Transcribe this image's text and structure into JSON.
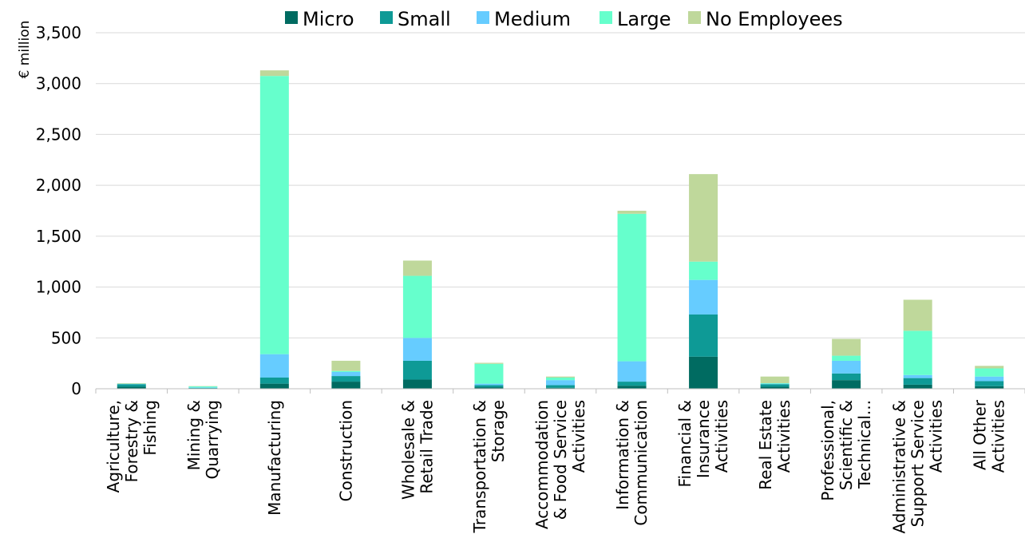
{
  "chart_data": {
    "type": "bar",
    "stacked": true,
    "ylabel": "€ million",
    "xlabel": "",
    "ylim": [
      0,
      3500
    ],
    "yticks": [
      "0",
      "500",
      "1,000",
      "1,500",
      "2,000",
      "2,500",
      "3,000",
      "3,500"
    ],
    "grid": true,
    "legend_position": "top",
    "categories": [
      [
        "Agriculture,",
        "Forestry &",
        "Fishing"
      ],
      [
        "Mining &",
        "Quarrying"
      ],
      [
        "Manufacturing"
      ],
      [
        "Construction"
      ],
      [
        "Wholesale &",
        "Retail Trade"
      ],
      [
        "Transportation &",
        "Storage"
      ],
      [
        "Accommodation",
        "& Food Service",
        "Activities"
      ],
      [
        "Information &",
        "Communication"
      ],
      [
        "Financial &",
        "Insurance",
        "Activities"
      ],
      [
        "Real Estate",
        "Activities"
      ],
      [
        "Professional,",
        "Scientific &",
        "Technical..."
      ],
      [
        "Administrative &",
        "Support Service",
        "Activities"
      ],
      [
        "All Other",
        "Activities"
      ]
    ],
    "series": [
      {
        "name": "Micro",
        "color": "#006b61",
        "values": [
          20,
          3,
          50,
          70,
          90,
          15,
          10,
          30,
          315,
          20,
          85,
          40,
          25
        ]
      },
      {
        "name": "Small",
        "color": "#0e9a96",
        "values": [
          25,
          5,
          60,
          55,
          185,
          20,
          25,
          40,
          415,
          25,
          65,
          65,
          50
        ]
      },
      {
        "name": "Medium",
        "color": "#66ccff",
        "values": [
          3,
          5,
          230,
          40,
          225,
          15,
          50,
          200,
          340,
          5,
          125,
          30,
          45
        ]
      },
      {
        "name": "Large",
        "color": "#66ffcc",
        "values": [
          2,
          10,
          2735,
          10,
          610,
          195,
          25,
          1450,
          180,
          5,
          50,
          435,
          80
        ]
      },
      {
        "name": "No Employees",
        "color": "#bfd89b",
        "values": [
          5,
          3,
          55,
          100,
          150,
          10,
          10,
          30,
          860,
          65,
          165,
          305,
          25
        ]
      }
    ]
  }
}
